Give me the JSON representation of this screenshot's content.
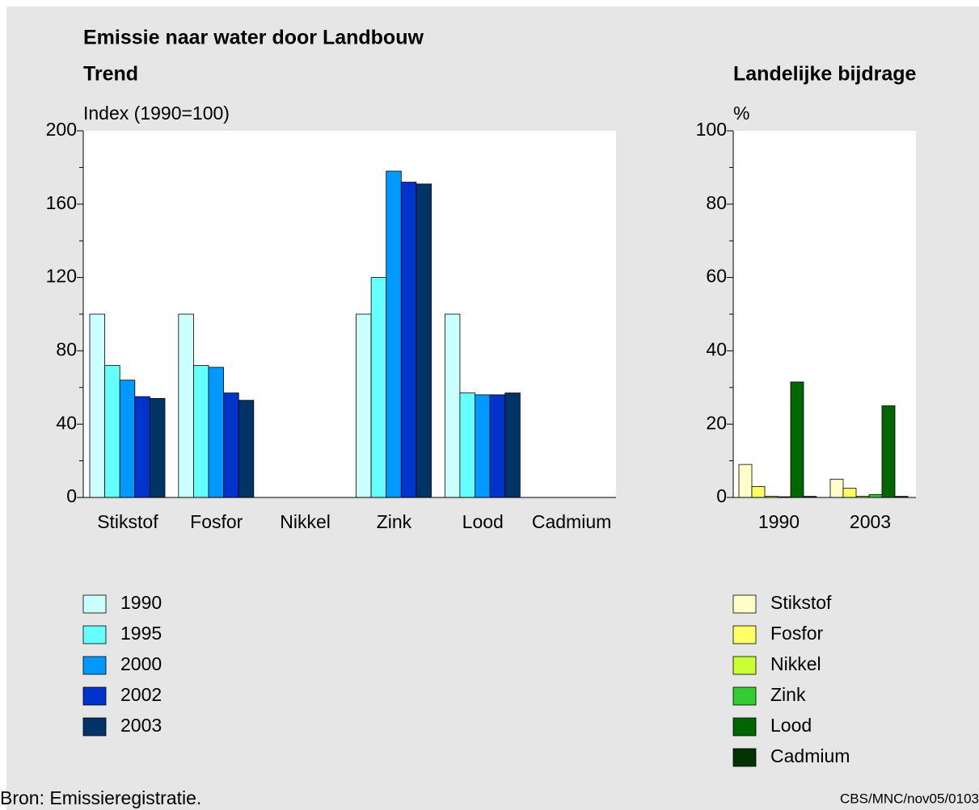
{
  "title": "Emissie naar water door Landbouw",
  "source": "Bron: Emissieregistratie.",
  "code": "CBS/MNC/nov05/0103",
  "chart_data": [
    {
      "type": "bar",
      "title": "Trend",
      "ylabel": "Index (1990=100)",
      "categories": [
        "Stikstof",
        "Fosfor",
        "Nikkel",
        "Zink",
        "Lood",
        "Cadmium"
      ],
      "series": [
        {
          "name": "1990",
          "color": "#ccffff",
          "values": [
            100,
            100,
            null,
            100,
            100,
            null
          ]
        },
        {
          "name": "1995",
          "color": "#66ffff",
          "values": [
            72,
            72,
            null,
            120,
            57,
            null
          ]
        },
        {
          "name": "2000",
          "color": "#0099ff",
          "values": [
            64,
            71,
            null,
            178,
            56,
            null
          ]
        },
        {
          "name": "2002",
          "color": "#0033cc",
          "values": [
            55,
            57,
            null,
            172,
            56,
            null
          ]
        },
        {
          "name": "2003",
          "color": "#003366",
          "values": [
            54,
            53,
            null,
            171,
            57,
            null
          ]
        }
      ],
      "ylim": [
        0,
        200
      ],
      "yticks": [
        0,
        40,
        80,
        120,
        160,
        200
      ],
      "yminorticks": [
        20,
        60,
        100,
        140,
        180
      ]
    },
    {
      "type": "bar",
      "title": "Landelijke bijdrage",
      "ylabel": "%",
      "categories": [
        "1990",
        "2003"
      ],
      "series": [
        {
          "name": "Stikstof",
          "color": "#ffffcc",
          "values": [
            9,
            5
          ]
        },
        {
          "name": "Fosfor",
          "color": "#ffff66",
          "values": [
            3,
            2.5
          ]
        },
        {
          "name": "Nikkel",
          "color": "#ccff33",
          "values": [
            0.3,
            0.3
          ]
        },
        {
          "name": "Zink",
          "color": "#33cc33",
          "values": [
            0.2,
            0.8
          ]
        },
        {
          "name": "Lood",
          "color": "#006600",
          "values": [
            31.5,
            25
          ]
        },
        {
          "name": "Cadmium",
          "color": "#003300",
          "values": [
            0.3,
            0.3
          ]
        }
      ],
      "ylim": [
        0,
        100
      ],
      "yticks": [
        0,
        20,
        40,
        60,
        80,
        100
      ],
      "yminorticks": [
        10,
        30,
        50,
        70,
        90
      ]
    }
  ]
}
